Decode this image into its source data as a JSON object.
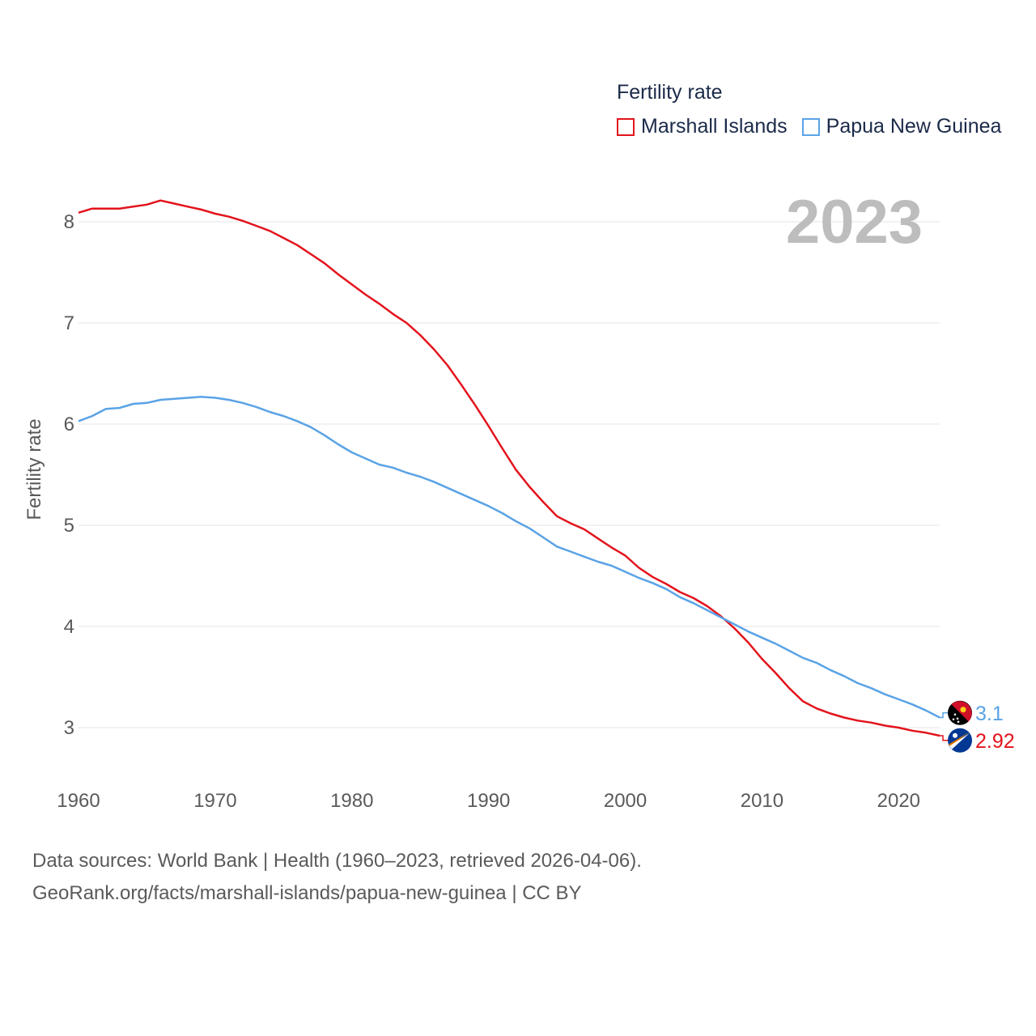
{
  "legend": {
    "title": "Fertility rate",
    "items": [
      {
        "label": "Marshall Islands",
        "color": "#e3131c"
      },
      {
        "label": "Papua New Guinea",
        "color": "#5aa3e6"
      }
    ]
  },
  "year_label": "2023",
  "footer": {
    "line1": "Data sources: World Bank | Health (1960–2023, retrieved 2026-04-06).",
    "line2": "GeoRank.org/facts/marshall-islands/papua-new-guinea | CC BY"
  },
  "chart_data": {
    "type": "line",
    "title": "Fertility rate",
    "xlabel": "",
    "ylabel": "Fertility rate",
    "xlim": [
      1960,
      2023
    ],
    "ylim": [
      2.5,
      8.4
    ],
    "xticks": [
      1960,
      1970,
      1980,
      1990,
      2000,
      2010,
      2020
    ],
    "yticks": [
      3,
      4,
      5,
      6,
      7,
      8
    ],
    "grid": true,
    "x": [
      1960,
      1961,
      1962,
      1963,
      1964,
      1965,
      1966,
      1967,
      1968,
      1969,
      1970,
      1971,
      1972,
      1973,
      1974,
      1975,
      1976,
      1977,
      1978,
      1979,
      1980,
      1981,
      1982,
      1983,
      1984,
      1985,
      1986,
      1987,
      1988,
      1989,
      1990,
      1991,
      1992,
      1993,
      1994,
      1995,
      1996,
      1997,
      1998,
      1999,
      2000,
      2001,
      2002,
      2003,
      2004,
      2005,
      2006,
      2007,
      2008,
      2009,
      2010,
      2011,
      2012,
      2013,
      2014,
      2015,
      2016,
      2017,
      2018,
      2019,
      2020,
      2021,
      2022,
      2023
    ],
    "series": [
      {
        "name": "Marshall Islands",
        "color": "#e3131c",
        "end_label": "2.92",
        "values": [
          8.09,
          8.13,
          8.13,
          8.13,
          8.15,
          8.17,
          8.21,
          8.18,
          8.15,
          8.12,
          8.08,
          8.05,
          8.01,
          7.96,
          7.91,
          7.84,
          7.77,
          7.68,
          7.59,
          7.48,
          7.38,
          7.28,
          7.19,
          7.09,
          7.0,
          6.88,
          6.74,
          6.58,
          6.39,
          6.19,
          5.98,
          5.76,
          5.55,
          5.38,
          5.23,
          5.09,
          5.02,
          4.96,
          4.87,
          4.78,
          4.7,
          4.58,
          4.49,
          4.42,
          4.34,
          4.28,
          4.2,
          4.1,
          3.98,
          3.84,
          3.68,
          3.54,
          3.39,
          3.26,
          3.19,
          3.14,
          3.1,
          3.07,
          3.05,
          3.02,
          3.0,
          2.97,
          2.95,
          2.92
        ]
      },
      {
        "name": "Papua New Guinea",
        "color": "#5aa3e6",
        "end_label": "3.1",
        "values": [
          6.03,
          6.08,
          6.15,
          6.16,
          6.2,
          6.21,
          6.24,
          6.25,
          6.26,
          6.27,
          6.26,
          6.24,
          6.21,
          6.17,
          6.12,
          6.08,
          6.03,
          5.97,
          5.89,
          5.8,
          5.72,
          5.66,
          5.6,
          5.57,
          5.52,
          5.48,
          5.43,
          5.37,
          5.31,
          5.25,
          5.19,
          5.12,
          5.04,
          4.97,
          4.88,
          4.79,
          4.74,
          4.69,
          4.64,
          4.6,
          4.54,
          4.48,
          4.43,
          4.37,
          4.29,
          4.23,
          4.16,
          4.09,
          4.02,
          3.95,
          3.89,
          3.83,
          3.76,
          3.69,
          3.64,
          3.57,
          3.51,
          3.44,
          3.39,
          3.33,
          3.28,
          3.23,
          3.17,
          3.1
        ]
      }
    ]
  }
}
